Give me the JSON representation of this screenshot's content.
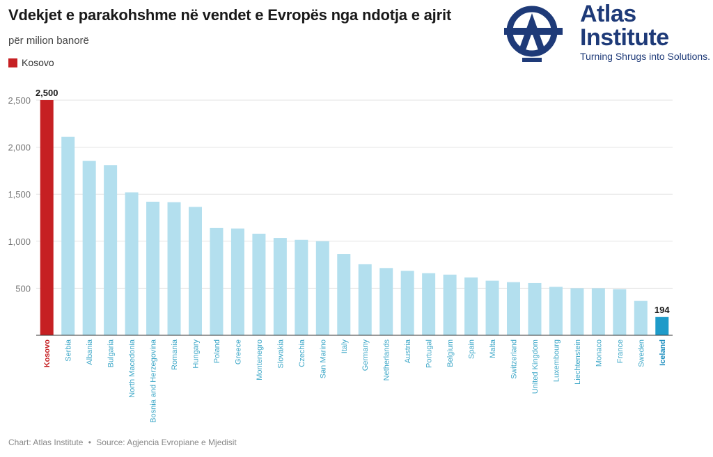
{
  "header": {
    "title": "Vdekjet e parakohshme në vendet e Evropës nga ndotja e ajrit",
    "subtitle": "për milion banorë"
  },
  "legend": {
    "label": "Kosovo",
    "color": "#c62023"
  },
  "logo": {
    "line1": "Atlas",
    "line2": "Institute",
    "tagline": "Turning Shrugs into Solutions.",
    "color": "#1e3a78"
  },
  "footer": {
    "chart_credit": "Chart: Atlas Institute",
    "separator": "•",
    "source": "Source: Agjencia Evropiane e Mjedisit"
  },
  "chart_data": {
    "type": "bar",
    "title": "Vdekjet e parakohshme në vendet e Evropës nga ndotja e ajrit",
    "ylabel": "",
    "xlabel": "",
    "ylim": [
      0,
      2500
    ],
    "yticks": [
      0,
      500,
      1000,
      1500,
      2000,
      2500
    ],
    "ytick_labels": [
      "",
      "500",
      "1,000",
      "1,500",
      "2,000",
      "2,500"
    ],
    "grid": true,
    "categories": [
      "Kosovo",
      "Serbia",
      "Albania",
      "Bulgaria",
      "North Macedonia",
      "Bosnia and Herzegovina",
      "Romania",
      "Hungary",
      "Poland",
      "Greece",
      "Montenegro",
      "Slovakia",
      "Czechia",
      "San Marino",
      "Italy",
      "Germany",
      "Netherlands",
      "Austria",
      "Portugal",
      "Belgium",
      "Spain",
      "Malta",
      "Switzerland",
      "United Kingdom",
      "Luxembourg",
      "Liechtenstein",
      "Monaco",
      "France",
      "Sweden",
      "Iceland"
    ],
    "values": [
      2500,
      2110,
      1855,
      1810,
      1520,
      1420,
      1415,
      1365,
      1140,
      1135,
      1080,
      1035,
      1015,
      1000,
      865,
      755,
      715,
      685,
      660,
      645,
      615,
      580,
      565,
      555,
      515,
      500,
      500,
      490,
      365,
      194
    ],
    "colors": {
      "default": "#b3dfee",
      "Kosovo": "#c62023",
      "Iceland": "#1f9bc9",
      "label_default": "#3fa8c8",
      "label_Kosovo": "#c62023",
      "label_Iceland": "#1f8fbf"
    },
    "data_labels": [
      {
        "category": "Kosovo",
        "text": "2,500"
      },
      {
        "category": "Iceland",
        "text": "194"
      }
    ]
  }
}
